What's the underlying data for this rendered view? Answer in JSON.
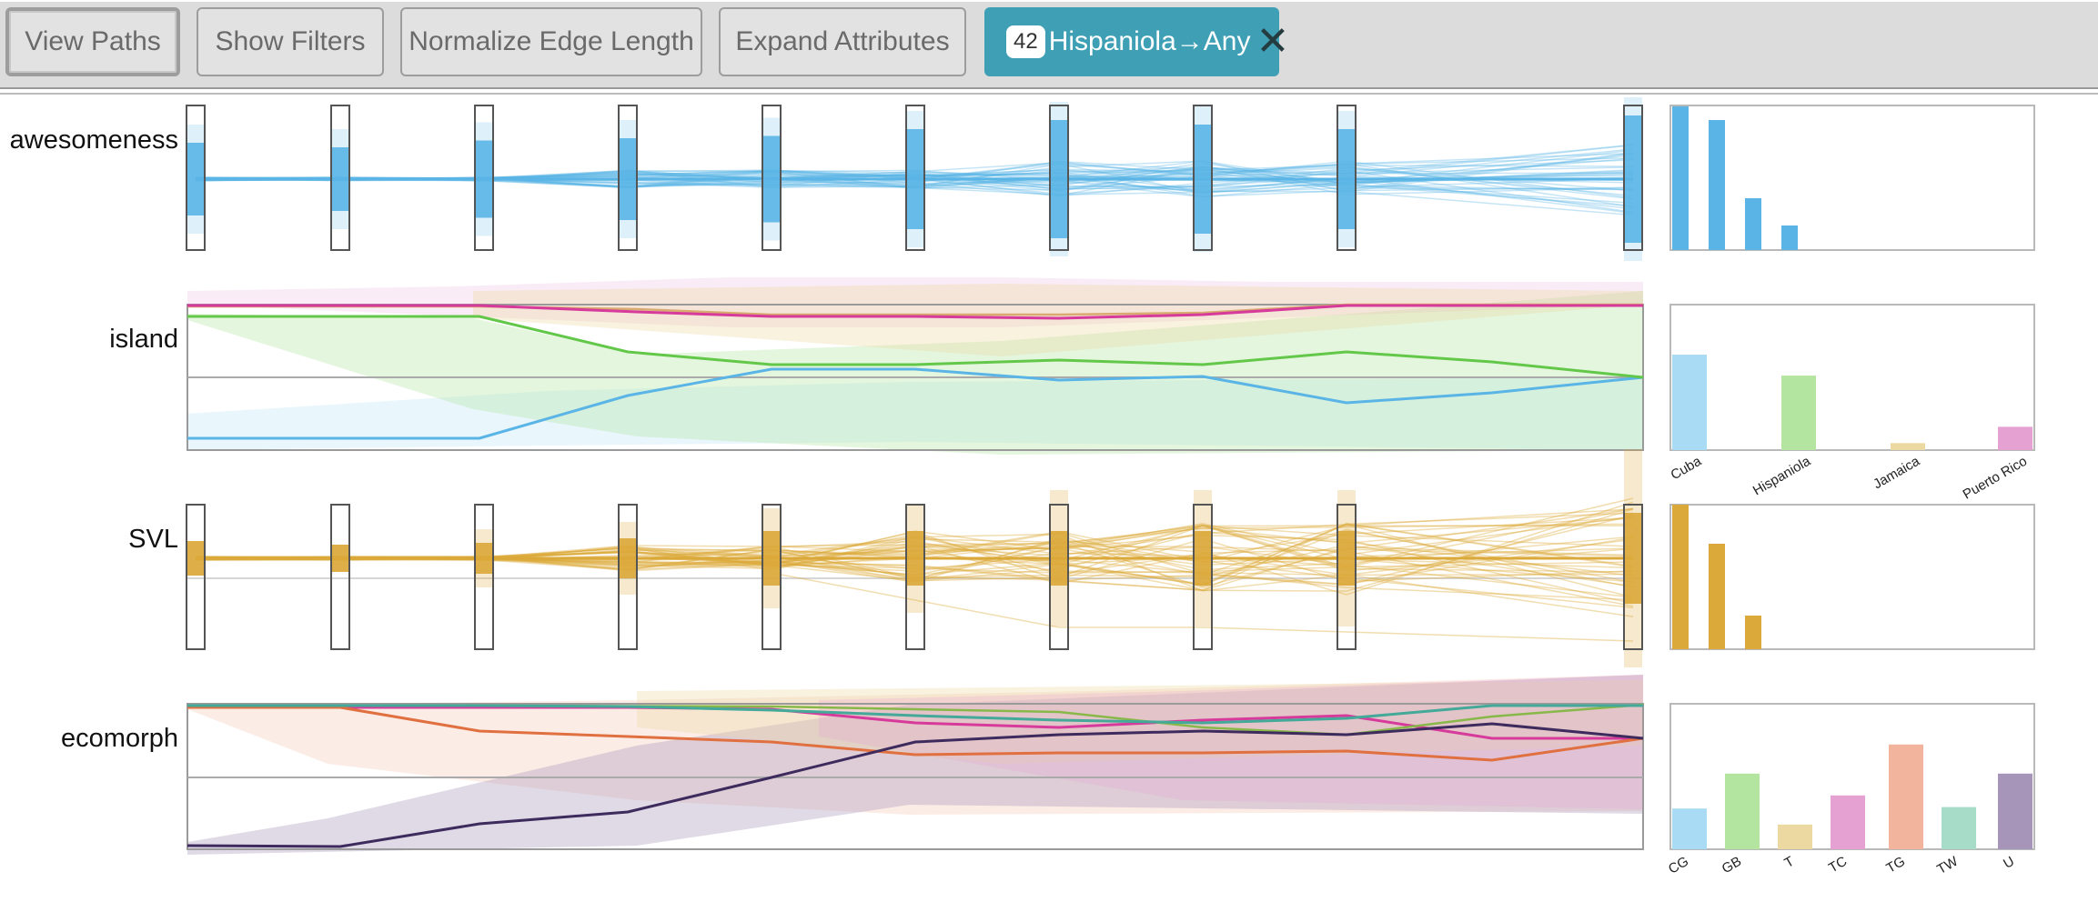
{
  "toolbar": {
    "buttons": [
      {
        "label": "View Paths",
        "active": true
      },
      {
        "label": "Show Filters",
        "active": false
      },
      {
        "label": "Normalize Edge Length",
        "active": false
      },
      {
        "label": "Expand Attributes",
        "active": false
      }
    ],
    "filter_chip": {
      "count": "42",
      "label": "Hispaniola→Any",
      "close_icon": "close-icon"
    }
  },
  "rows": {
    "awesomeness": {
      "label": "awesomeness"
    },
    "island": {
      "label": "island",
      "categories": [
        "Cuba",
        "Hispaniola",
        "Jamaica",
        "Puerto Rico"
      ],
      "hist_values": [
        0.82,
        0.64,
        0.06,
        0.2
      ],
      "hist_colors": [
        "#a9dbf5",
        "#b3e5a0",
        "#ecd9a2",
        "#e6a1d3"
      ]
    },
    "svl": {
      "label": "SVL"
    },
    "ecomorph": {
      "label": "ecomorph",
      "categories": [
        "CG",
        "GB",
        "T",
        "TC",
        "TG",
        "TW",
        "U"
      ],
      "hist_values": [
        0.28,
        0.52,
        0.17,
        0.37,
        0.72,
        0.29,
        0.52
      ],
      "hist_colors": [
        "#a9dbf5",
        "#b3e5a0",
        "#ecd9a2",
        "#e6a1d3",
        "#f2b49c",
        "#a7dcc8",
        "#a695b8"
      ]
    }
  },
  "colors": {
    "blue": "#5ab5e6",
    "gold": "#dba93a",
    "green": "#63c84a",
    "pink": "#d63a9a",
    "orange": "#e07040",
    "teal": "#45a99a",
    "purple": "#3e2b5e"
  }
}
